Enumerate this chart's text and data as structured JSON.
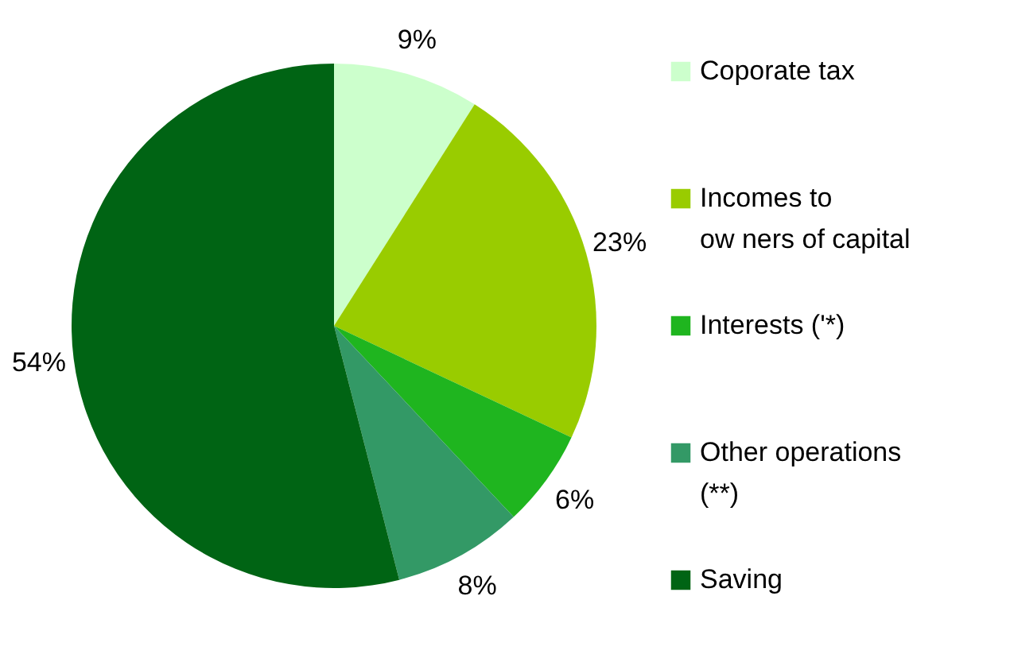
{
  "chart_data": {
    "type": "pie",
    "categories": [
      "Coporate tax",
      "Incomes to\now ners of capital",
      "Interests ('*)",
      "Other operations\n(**)",
      "Saving"
    ],
    "values": [
      9,
      23,
      6,
      8,
      54
    ],
    "colors": [
      "#ccffcc",
      "#99cc00",
      "#1fb51f",
      "#339966",
      "#006414"
    ],
    "value_labels": [
      "9%",
      "23%",
      "6%",
      "8%",
      "54%"
    ],
    "legend": "right"
  }
}
